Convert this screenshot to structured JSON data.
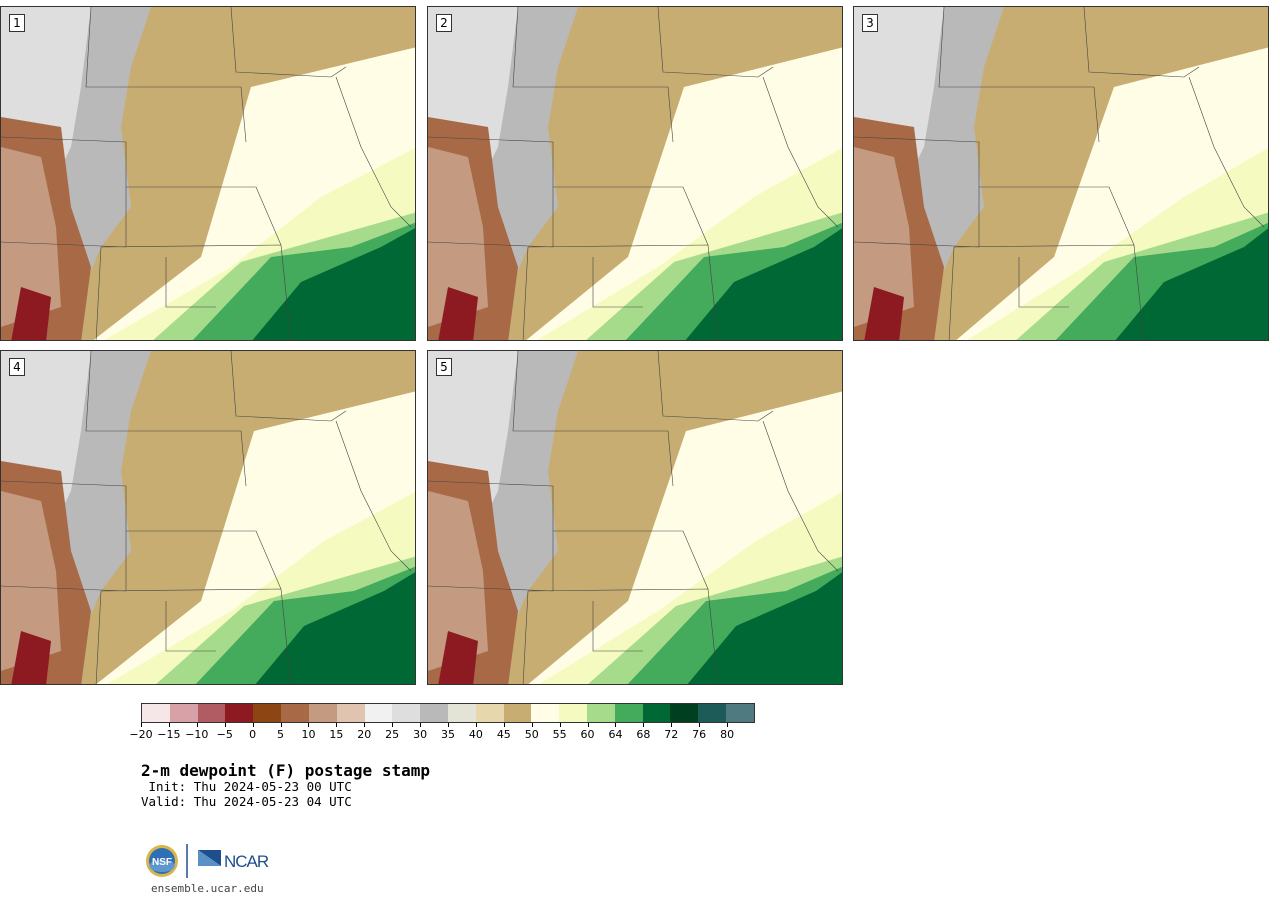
{
  "panels": [
    {
      "label": "1"
    },
    {
      "label": "2"
    },
    {
      "label": "3"
    },
    {
      "label": "4"
    },
    {
      "label": "5"
    }
  ],
  "colorbar": {
    "colors": [
      "#f5e6e8",
      "#d8a1a8",
      "#b05c62",
      "#8c1a20",
      "#8c4513",
      "#a86a46",
      "#c49a80",
      "#e0c4b0",
      "#f1f1f1",
      "#dedede",
      "#b9b9b9",
      "#e3e3d6",
      "#e6d7ad",
      "#c8ad73",
      "#fffde6",
      "#f5fbc0",
      "#a6db8c",
      "#44aa5c",
      "#006834",
      "#004020",
      "#1d5b58",
      "#4f7b80"
    ],
    "tick_labels": [
      "−20",
      "−15",
      "−10",
      "−5",
      "0",
      "5",
      "10",
      "15",
      "20",
      "25",
      "30",
      "35",
      "40",
      "45",
      "50",
      "55",
      "60",
      "64",
      "68",
      "72",
      "76",
      "80"
    ]
  },
  "title": "2-m dewpoint (F) postage stamp",
  "init_line": " Init: Thu 2024-05-23 00 UTC",
  "valid_line": "Valid: Thu 2024-05-23 04 UTC",
  "logos": {
    "nsf": "NSF",
    "ncar": "NCAR"
  },
  "website": "ensemble.ucar.edu"
}
